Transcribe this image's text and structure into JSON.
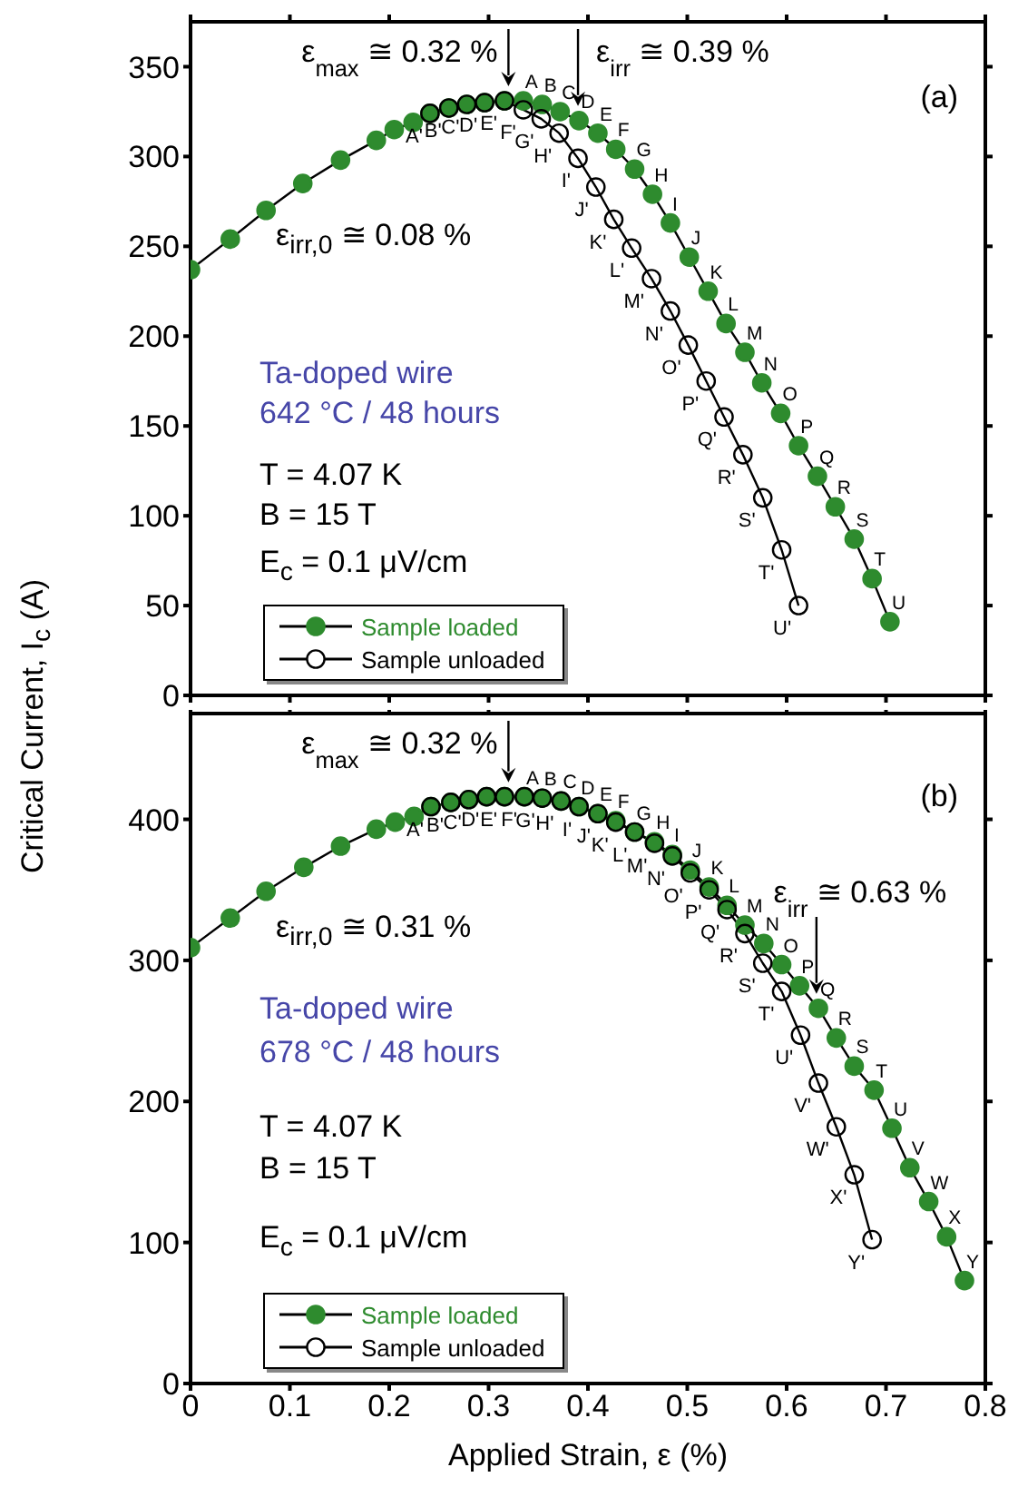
{
  "chart_data": [
    {
      "type": "line",
      "ylabel": "Critical Current, I$_{c}$ (A)",
      "xlim": [
        0,
        0.8
      ],
      "xticks": [
        0,
        0.1,
        0.2,
        0.3,
        0.4,
        0.5,
        0.6,
        0.7,
        0.8
      ],
      "ylim": [
        0,
        375
      ],
      "yticks": [
        0,
        50,
        100,
        150,
        200,
        250,
        300,
        350
      ],
      "tick_labels": "y",
      "grid": false,
      "legend": "bottom left",
      "marker": "circle",
      "line_style": "solid",
      "series": [
        {
          "name": "Sample loaded",
          "color": "#2e8b2e",
          "x": [
            0,
            0.04,
            0.076,
            0.113,
            0.151,
            0.187,
            0.205,
            0.224,
            0.241,
            0.26,
            0.278,
            0.296,
            0.316,
            0.335,
            0.354,
            0.372,
            0.391,
            0.41,
            0.428,
            0.447,
            0.465,
            0.483,
            0.502,
            0.521,
            0.539,
            0.558,
            0.575,
            0.594,
            0.612,
            0.631,
            0.649,
            0.668,
            0.686,
            0.704
          ],
          "values": [
            237,
            254,
            270,
            285,
            298,
            309,
            315,
            319,
            324,
            327,
            329,
            330,
            331,
            331,
            329,
            325,
            320,
            313,
            304,
            293,
            279,
            263,
            244,
            225,
            207,
            191,
            174,
            157,
            139,
            122,
            105,
            87,
            65,
            41
          ],
          "value_labels": [
            null,
            null,
            null,
            null,
            null,
            null,
            null,
            null,
            null,
            null,
            null,
            null,
            null,
            "A",
            "B",
            "C",
            "D",
            "E",
            "F",
            "G",
            "H",
            "I",
            "J",
            "K",
            "L",
            "M",
            "N",
            "O",
            "P",
            "Q",
            "R",
            "S",
            "T",
            "U"
          ]
        },
        {
          "name": "Sample unloaded",
          "color": "#000000",
          "x": [
            0.241,
            0.26,
            0.278,
            0.296,
            0.316,
            0.335,
            0.353,
            0.371,
            0.39,
            0.408,
            0.426,
            0.444,
            0.464,
            0.483,
            0.501,
            0.519,
            0.537,
            0.556,
            0.576,
            0.595,
            0.612
          ],
          "values": [
            324,
            327,
            329,
            330,
            331,
            326,
            321,
            313,
            299,
            283,
            265,
            249,
            232,
            214,
            195,
            175,
            155,
            134,
            110,
            81,
            50
          ],
          "value_labels": [
            "A'",
            "B'",
            "C'",
            "D'",
            "E'",
            "F'",
            "G'",
            "H'",
            "I'",
            "J'",
            "K'",
            "L'",
            "M'",
            "N'",
            "O'",
            "P'",
            "Q'",
            "R'",
            "S'",
            "T'",
            "U'"
          ]
        }
      ],
      "annotations": [
        {
          "text": "ε$_{max}$ ≅ 0.32 %",
          "x": 0.32,
          "y": 331
        },
        {
          "text": "ε$_{irr}$ ≅ 0.39 %",
          "x": 0.39,
          "y": 320
        },
        "(a)",
        "ε$_{irr,0}$ ≅ 0.08 %",
        "Ta-doped wire",
        "642 °C / 48 hours",
        "T = 4.07 K",
        "B = 15 T",
        "E$_{c}$ = 0.1 μV/cm"
      ]
    },
    {
      "type": "line",
      "xlabel": "Applied Strain, ε (%)",
      "xlim": [
        0,
        0.8
      ],
      "xticks": [
        0,
        0.1,
        0.2,
        0.3,
        0.4,
        0.5,
        0.6,
        0.7,
        0.8
      ],
      "ylim": [
        0,
        475
      ],
      "yticks": [
        0,
        100,
        200,
        300,
        400
      ],
      "grid": false,
      "legend": "bottom left",
      "marker": "circle",
      "line_style": "solid",
      "series": [
        {
          "name": "Sample loaded",
          "color": "#2e8b2e",
          "x": [
            0,
            0.04,
            0.076,
            0.114,
            0.151,
            0.187,
            0.206,
            0.225,
            0.242,
            0.262,
            0.28,
            0.298,
            0.316,
            0.336,
            0.354,
            0.373,
            0.391,
            0.41,
            0.428,
            0.447,
            0.467,
            0.485,
            0.503,
            0.522,
            0.54,
            0.558,
            0.577,
            0.595,
            0.613,
            0.632,
            0.65,
            0.668,
            0.688,
            0.706,
            0.724,
            0.743,
            0.761,
            0.779
          ],
          "values": [
            309,
            330,
            349,
            366,
            381,
            393,
            398,
            402,
            409,
            412,
            414,
            416,
            416,
            416,
            415,
            413,
            409,
            404,
            399,
            391,
            384,
            375,
            364,
            352,
            339,
            325,
            312,
            297,
            282,
            266,
            245,
            225,
            208,
            181,
            153,
            129,
            104,
            73
          ],
          "value_labels": [
            null,
            null,
            null,
            null,
            null,
            null,
            null,
            null,
            null,
            null,
            null,
            null,
            null,
            "A",
            "B",
            "C",
            "D",
            "E",
            "F",
            "G",
            "H",
            "I",
            "J",
            "K",
            "L",
            "M",
            "N",
            "O",
            "P",
            "Q",
            "R",
            "S",
            "T",
            "U",
            "V",
            "W",
            "X",
            "Y"
          ]
        },
        {
          "name": "Sample unloaded",
          "color": "#000000",
          "x": [
            0.242,
            0.262,
            0.28,
            0.298,
            0.316,
            0.336,
            0.354,
            0.373,
            0.391,
            0.41,
            0.428,
            0.447,
            0.467,
            0.485,
            0.503,
            0.522,
            0.54,
            0.558,
            0.576,
            0.595,
            0.614,
            0.632,
            0.65,
            0.668,
            0.686
          ],
          "values": [
            409,
            412,
            414,
            416,
            416,
            416,
            415,
            413,
            409,
            404,
            398,
            391,
            383,
            374,
            362,
            350,
            336,
            319,
            298,
            278,
            247,
            213,
            182,
            148,
            102
          ],
          "value_labels": [
            "A'",
            "B'",
            "C'",
            "D'",
            "E'",
            "F'",
            "G'",
            "H'",
            "I'",
            "J'",
            "K'",
            "L'",
            "M'",
            "N'",
            "O'",
            "P'",
            "Q'",
            "R'",
            "S'",
            "T'",
            "U'",
            "V'",
            "W'",
            "X'",
            "Y'"
          ]
        }
      ],
      "annotations": [
        {
          "text": "ε$_{max}$ ≅ 0.32 %",
          "x": 0.32,
          "y": 416
        },
        {
          "text": "ε$_{irr}$ ≅ 0.63 %",
          "x": 0.63,
          "y": 266
        },
        "(b)",
        "ε$_{irr,0}$ ≅ 0.31 %",
        "Ta-doped wire",
        "678 °C / 48 hours",
        "T = 4.07 K",
        "B = 15 T",
        "E$_{c}$ = 0.1 μV/cm"
      ]
    }
  ]
}
